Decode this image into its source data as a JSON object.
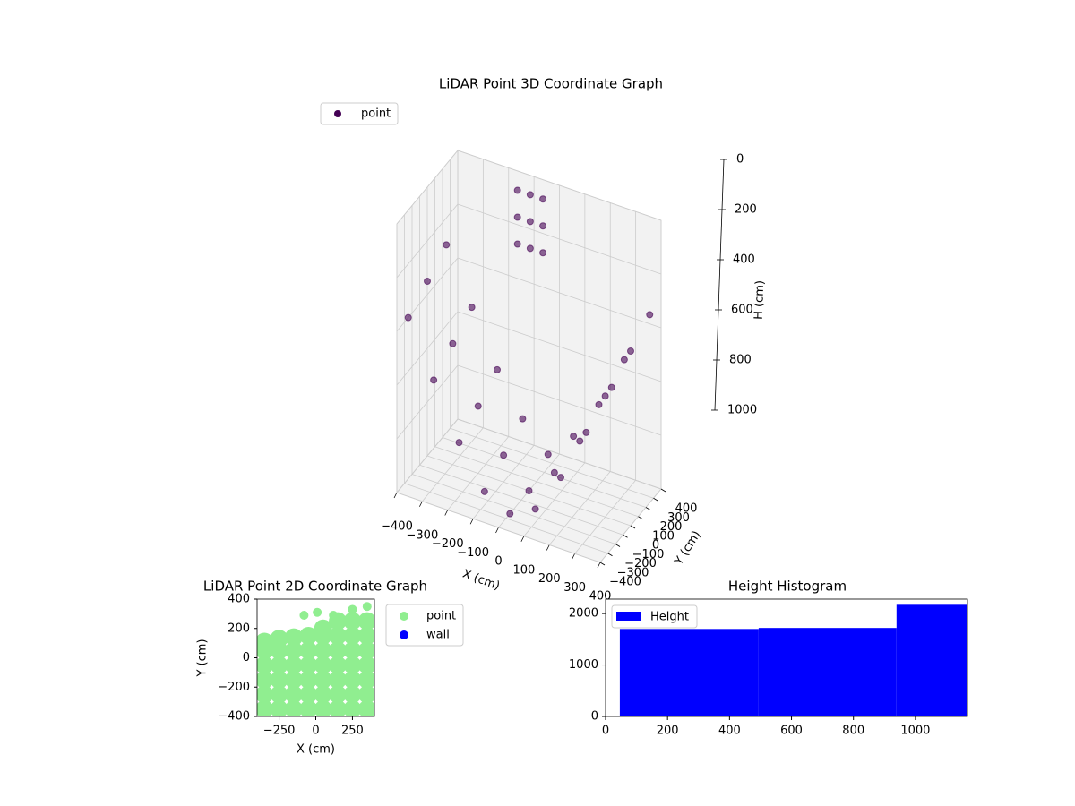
{
  "chart_data": [
    {
      "type": "scatter3d",
      "title": "LiDAR Point 3D Coordinate Graph",
      "xlabel": "X (cm)",
      "ylabel": "Y (cm)",
      "zlabel": "H (cm)",
      "xlim": [
        -400,
        400
      ],
      "ylim": [
        -400,
        400
      ],
      "zlim": [
        0,
        1000
      ],
      "z_inverted": true,
      "xticks": [
        {
          "value": -400,
          "label": "−400"
        },
        {
          "value": -300,
          "label": "−300"
        },
        {
          "value": -200,
          "label": "−200"
        },
        {
          "value": -100,
          "label": "−100"
        },
        0,
        100,
        200,
        300,
        400
      ],
      "yticks": [
        {
          "value": -400,
          "label": "−400"
        },
        {
          "value": -300,
          "label": "−300"
        },
        {
          "value": -200,
          "label": "−200"
        },
        {
          "value": -100,
          "label": "−100"
        },
        0,
        100,
        200,
        300,
        400
      ],
      "zticks": [
        0,
        200,
        400,
        600,
        800,
        1000
      ],
      "grid": true,
      "legend": "upper left",
      "series": [
        {
          "name": "point",
          "color": "#440154",
          "x": [
            -400,
            -300,
            -200,
            -100,
            0,
            100,
            200,
            300,
            400,
            -400,
            -300,
            -200,
            -100,
            0,
            100,
            200,
            300,
            400,
            -400,
            -300,
            -200,
            -100,
            0,
            100,
            200,
            300,
            400,
            -150,
            -150,
            -150,
            -100,
            -100,
            -100,
            -50,
            -50,
            -50
          ],
          "y": [
            0,
            0,
            0,
            0,
            0,
            0,
            0,
            0,
            0,
            -250,
            -250,
            -250,
            -250,
            -250,
            -250,
            -250,
            -250,
            -250,
            250,
            250,
            250,
            250,
            250,
            250,
            250,
            250,
            250,
            350,
            350,
            350,
            350,
            350,
            350,
            350,
            350,
            350
          ],
          "z": [
            350,
            550,
            750,
            900,
            1000,
            900,
            750,
            550,
            350,
            400,
            600,
            800,
            950,
            1000,
            950,
            800,
            600,
            400,
            300,
            500,
            700,
            850,
            950,
            850,
            700,
            500,
            300,
            50,
            150,
            250,
            50,
            150,
            250,
            50,
            150,
            250
          ]
        }
      ]
    },
    {
      "type": "scatter",
      "title": "LiDAR Point 2D Coordinate Graph",
      "xlabel": "X (cm)",
      "ylabel": "Y (cm)",
      "xlim": [
        -400,
        400
      ],
      "ylim": [
        -400,
        400
      ],
      "xticks": [
        {
          "value": -250,
          "label": "−250"
        },
        0,
        250
      ],
      "yticks": [
        {
          "value": -400,
          "label": "−400"
        },
        {
          "value": -200,
          "label": "−200"
        },
        0,
        200,
        400
      ],
      "legend": "outside right",
      "series": [
        {
          "name": "point",
          "color": "#90ee90",
          "x": [
            -350,
            -350,
            -350,
            -350,
            -350,
            -350,
            -250,
            -250,
            -250,
            -250,
            -250,
            -250,
            -150,
            -150,
            -150,
            -150,
            -150,
            -150,
            -50,
            -50,
            -50,
            -50,
            -50,
            -50,
            50,
            50,
            50,
            50,
            50,
            50,
            50,
            150,
            150,
            150,
            150,
            150,
            150,
            150,
            250,
            250,
            250,
            250,
            250,
            250,
            250,
            250,
            350,
            350,
            350,
            350,
            350,
            350,
            350,
            350,
            -80,
            10,
            120
          ],
          "y": [
            -350,
            -250,
            -150,
            -50,
            50,
            110,
            -350,
            -250,
            -150,
            -50,
            50,
            130,
            -350,
            -250,
            -150,
            -50,
            50,
            140,
            -350,
            -250,
            -150,
            -50,
            50,
            150,
            -350,
            -250,
            -150,
            -50,
            50,
            150,
            200,
            -350,
            -250,
            -150,
            -50,
            50,
            150,
            250,
            -350,
            -250,
            -150,
            -50,
            50,
            150,
            250,
            330,
            -350,
            -250,
            -150,
            -50,
            50,
            150,
            250,
            350,
            290,
            310,
            290
          ]
        },
        {
          "name": "wall",
          "color": "#0000ff",
          "x": [],
          "y": []
        }
      ]
    },
    {
      "type": "histogram",
      "title": "Height Histogram",
      "xlim": [
        0,
        1168
      ],
      "ylim": [
        0,
        2280
      ],
      "xticks": [
        0,
        200,
        400,
        600,
        800,
        1000
      ],
      "yticks": [
        0,
        1000,
        2000
      ],
      "legend": "upper left",
      "bins": [
        46,
        494,
        939,
        1168
      ],
      "series": [
        {
          "name": "Height",
          "color": "#0000ff",
          "values": [
            1700,
            1720,
            2170
          ]
        }
      ]
    }
  ]
}
